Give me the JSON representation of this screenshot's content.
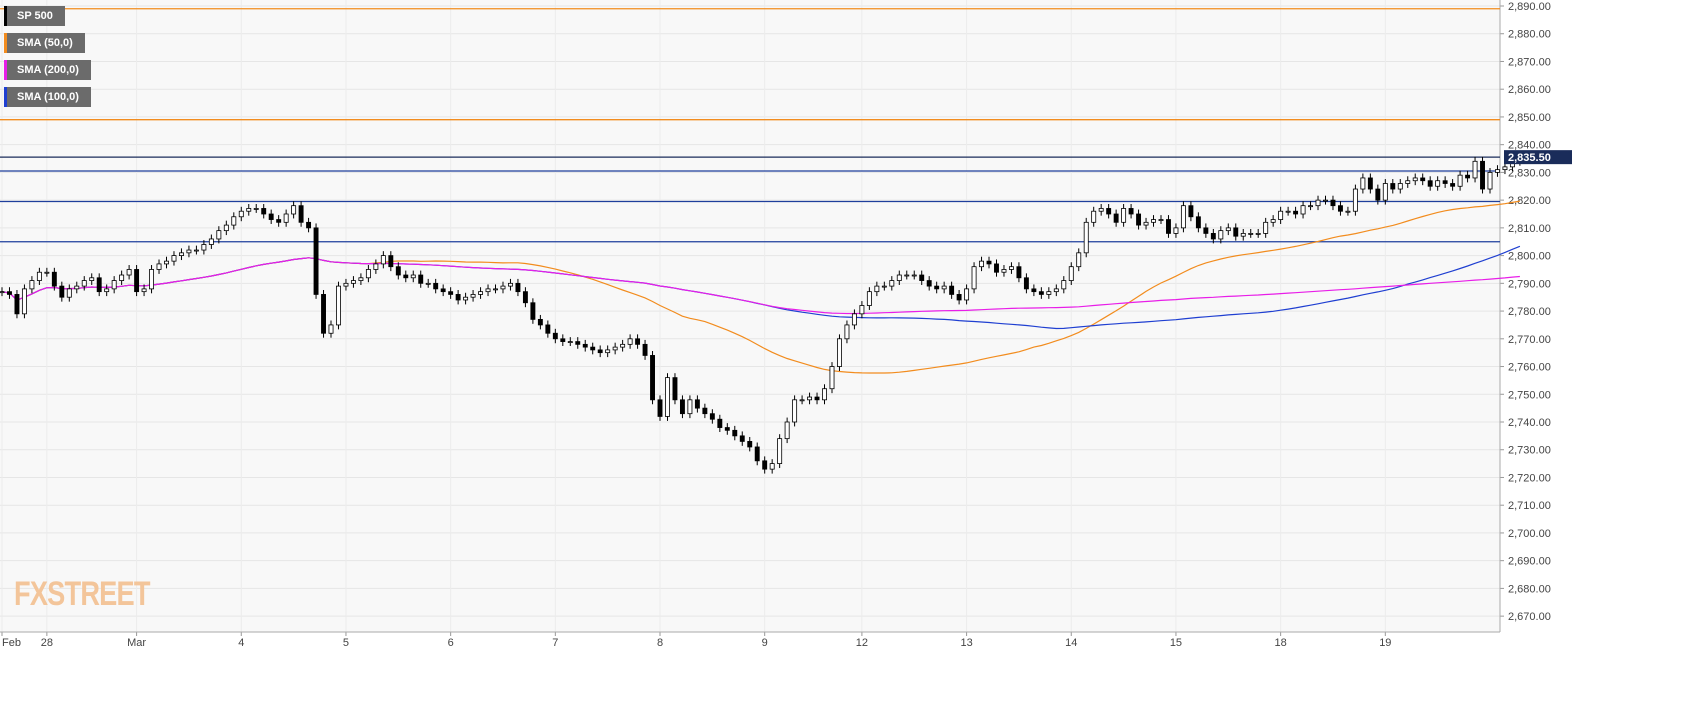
{
  "legend": [
    {
      "label": "SP 500",
      "color": "#000000"
    },
    {
      "label": "SMA (50,0)",
      "color": "#f28c1e"
    },
    {
      "label": "SMA (200,0)",
      "color": "#e81ee8"
    },
    {
      "label": "SMA (100,0)",
      "color": "#1f3fd1"
    }
  ],
  "logo": {
    "text_a": "FX",
    "text_b": "STREET"
  },
  "chart_data": {
    "type": "candlestick",
    "title": "",
    "symbol": "SP 500",
    "last_price": 2835.5,
    "last_price_label": "2,835.50",
    "ylim": [
      2665,
      2890
    ],
    "y_ticks": [
      2670,
      2680,
      2690,
      2700,
      2710,
      2720,
      2730,
      2740,
      2750,
      2760,
      2770,
      2780,
      2790,
      2800,
      2810,
      2820,
      2830,
      2840,
      2850,
      2860,
      2870,
      2880,
      2890
    ],
    "y_tick_labels": [
      "2,670.00",
      "2,680.00",
      "2,690.00",
      "2,700.00",
      "2,710.00",
      "2,720.00",
      "2,730.00",
      "2,740.00",
      "2,750.00",
      "2,760.00",
      "2,770.00",
      "2,780.00",
      "2,790.00",
      "2,800.00",
      "2,810.00",
      "2,820.00",
      "2,830.00",
      "2,840.00",
      "2,850.00",
      "2,860.00",
      "2,870.00",
      "2,880.00",
      "2,890.00"
    ],
    "x_tick_labels": [
      "Feb",
      "28",
      "Mar",
      "4",
      "5",
      "6",
      "7",
      "8",
      "9",
      "12",
      "13",
      "14",
      "15",
      "18",
      "19"
    ],
    "x_tick_index": [
      0,
      6,
      18,
      32,
      46,
      60,
      74,
      88,
      102,
      115,
      129,
      143,
      157,
      171,
      185
    ],
    "x_range": [
      0,
      199
    ],
    "grid": true,
    "horizontal_levels": [
      {
        "value": 2889,
        "color": "#f28c1e"
      },
      {
        "value": 2849,
        "color": "#f28c1e"
      },
      {
        "value": 2835.5,
        "color": "#1a2c5a"
      },
      {
        "value": 2830.5,
        "color": "#1f3f9c"
      },
      {
        "value": 2819.5,
        "color": "#1f3f9c"
      },
      {
        "value": 2805,
        "color": "#1f3f9c"
      }
    ],
    "close": [
      2787,
      2786,
      2779,
      2788,
      2791,
      2794,
      2794,
      2789,
      2785,
      2788,
      2789,
      2791,
      2792,
      2787,
      2788,
      2791,
      2793,
      2795,
      2787,
      2788,
      2795,
      2797,
      2798,
      2800,
      2801,
      2802,
      2802,
      2804,
      2806,
      2809,
      2811,
      2814,
      2816,
      2817,
      2817,
      2815,
      2813,
      2812,
      2815,
      2818,
      2812,
      2810,
      2786,
      2772,
      2775,
      2789,
      2790,
      2791,
      2792,
      2795,
      2797,
      2800,
      2796,
      2793,
      2792,
      2793,
      2790,
      2790,
      2788,
      2787,
      2786,
      2784,
      2785,
      2786,
      2787,
      2788,
      2788,
      2789,
      2790,
      2787,
      2783,
      2777,
      2775,
      2772,
      2770,
      2769,
      2769,
      2768,
      2767,
      2766,
      2765,
      2766,
      2767,
      2768,
      2770,
      2768,
      2764,
      2748,
      2742,
      2756,
      2748,
      2743,
      2748,
      2745,
      2743,
      2741,
      2738,
      2737,
      2735,
      2733,
      2731,
      2726,
      2723,
      2725,
      2734,
      2740,
      2748,
      2748,
      2749,
      2748,
      2752,
      2760,
      2770,
      2775,
      2779,
      2782,
      2787,
      2789,
      2789,
      2791,
      2793,
      2793,
      2793,
      2791,
      2789,
      2788,
      2789,
      2786,
      2784,
      2788,
      2796,
      2798,
      2797,
      2794,
      2795,
      2796,
      2792,
      2788,
      2787,
      2786,
      2787,
      2788,
      2791,
      2796,
      2801,
      2812,
      2816,
      2817,
      2815,
      2812,
      2817,
      2815,
      2811,
      2812,
      2813,
      2813,
      2808,
      2810,
      2818,
      2814,
      2810,
      2808,
      2806,
      2809,
      2810,
      2807,
      2808,
      2808,
      2808,
      2812,
      2813,
      2816,
      2816,
      2815,
      2818,
      2818,
      2820,
      2820,
      2818,
      2816,
      2816,
      2824,
      2828,
      2824,
      2820,
      2826,
      2824,
      2826,
      2827,
      2828,
      2827,
      2825,
      2827,
      2826,
      2825,
      2829,
      2828,
      2834,
      2824,
      2830,
      2831,
      2832,
      2834,
      2836
    ]
  }
}
